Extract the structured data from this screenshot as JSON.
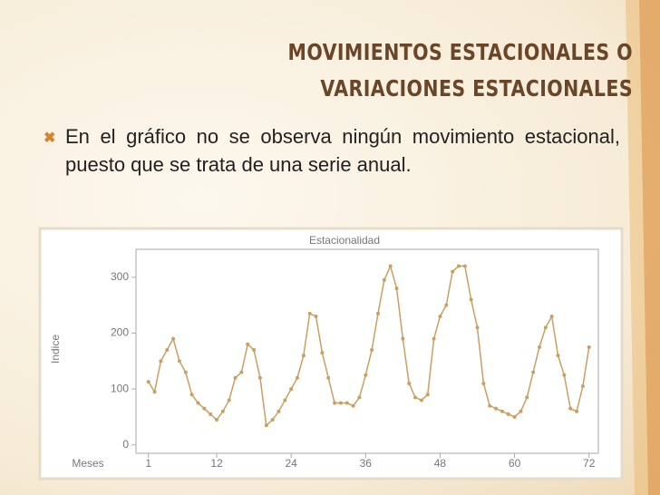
{
  "slide": {
    "title": "MOVIMIENTOS ESTACIONALES O VARIACIONES ESTACIONALES",
    "bullet": "En el gráfico no se observa ningún movimiento estacional, puesto que se trata de una serie anual."
  },
  "chart_data": {
    "type": "line",
    "title": "Estacionalidad",
    "x_label": "Meses",
    "y_label": "Indice",
    "x": [
      1,
      2,
      3,
      4,
      5,
      6,
      7,
      8,
      9,
      10,
      11,
      12,
      13,
      14,
      15,
      16,
      17,
      18,
      19,
      20,
      21,
      22,
      23,
      24,
      25,
      26,
      27,
      28,
      29,
      30,
      31,
      32,
      33,
      34,
      35,
      36,
      37,
      38,
      39,
      40,
      41,
      42,
      43,
      44,
      45,
      46,
      47,
      48,
      49,
      50,
      51,
      52,
      53,
      54,
      55,
      56,
      57,
      58,
      59,
      60,
      61,
      62,
      63,
      64,
      65,
      66,
      67,
      68,
      69,
      70,
      71,
      72
    ],
    "values": [
      113,
      95,
      150,
      170,
      190,
      150,
      130,
      90,
      75,
      65,
      55,
      45,
      60,
      80,
      120,
      130,
      180,
      170,
      120,
      35,
      45,
      60,
      80,
      100,
      120,
      160,
      235,
      230,
      165,
      120,
      75,
      75,
      75,
      70,
      85,
      125,
      170,
      235,
      295,
      320,
      280,
      190,
      110,
      85,
      80,
      90,
      190,
      230,
      250,
      310,
      320,
      320,
      260,
      210,
      110,
      70,
      65,
      60,
      55,
      50,
      60,
      85,
      130,
      175,
      210,
      230,
      160,
      125,
      65,
      60,
      105,
      175
    ],
    "color": "#c9a060",
    "xlim": [
      -1,
      73.5
    ],
    "ylim": [
      -15,
      350
    ],
    "xticks": [
      1,
      12,
      24,
      36,
      48,
      60,
      72
    ],
    "yticks": [
      0,
      100,
      200,
      300
    ]
  }
}
